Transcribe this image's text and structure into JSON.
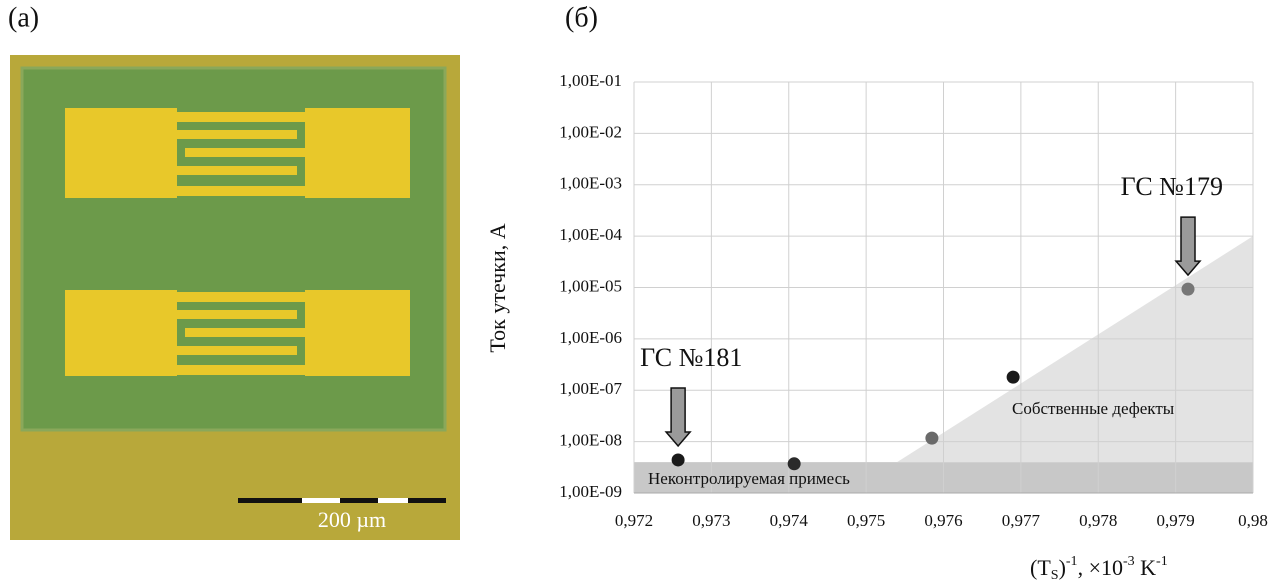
{
  "panel_a": {
    "label": "(a)",
    "scale_bar": "200 µm"
  },
  "panel_b": {
    "label": "(б)"
  },
  "chart_data": {
    "type": "scatter",
    "log_y": true,
    "grid": true,
    "y_label": "Ток утечки, А",
    "x_label": [
      "(T",
      "S",
      ")",
      "-1",
      ", ×10",
      "-3",
      " K",
      "-1"
    ],
    "xlim": [
      0.972,
      0.98
    ],
    "xticks": [
      {
        "value": 0.972,
        "label": "0,972"
      },
      {
        "value": 0.973,
        "label": "0,973"
      },
      {
        "value": 0.974,
        "label": "0,974"
      },
      {
        "value": 0.975,
        "label": "0,975"
      },
      {
        "value": 0.976,
        "label": "0,976"
      },
      {
        "value": 0.977,
        "label": "0,977"
      },
      {
        "value": 0.978,
        "label": "0,978"
      },
      {
        "value": 0.979,
        "label": "0,979"
      },
      {
        "value": 0.98,
        "label": "0,98"
      }
    ],
    "ylim": [
      1e-09,
      0.1
    ],
    "yticks": [
      {
        "value": 1e-09,
        "label": "1,00E-09"
      },
      {
        "value": 1e-08,
        "label": "1,00E-08"
      },
      {
        "value": 1e-07,
        "label": "1,00E-07"
      },
      {
        "value": 1e-06,
        "label": "1,00E-06"
      },
      {
        "value": 1e-05,
        "label": "1,00E-05"
      },
      {
        "value": 0.0001,
        "label": "1,00E-04"
      },
      {
        "value": 0.001,
        "label": "1,00E-03"
      },
      {
        "value": 0.01,
        "label": "1,00E-02"
      },
      {
        "value": 0.1,
        "label": "1,00E-01"
      }
    ],
    "x": [
      0.97257,
      0.97407,
      0.97585,
      0.9769,
      0.97916
    ],
    "values": [
      4.4e-09,
      3.7e-09,
      1.17e-08,
      1.8e-07,
      9.3e-06
    ],
    "colors": [
      "#1a1a1a",
      "#2a2a2a",
      "#6a6a6a",
      "#1a1a1a",
      "#777777"
    ],
    "regions": [
      {
        "name": "Неконтролируемая примесь",
        "color": "#c8c8c8",
        "points": [
          [
            0.972,
            1e-09
          ],
          [
            0.98,
            1e-09
          ],
          [
            0.98,
            4e-09
          ],
          [
            0.972,
            4e-09
          ]
        ]
      },
      {
        "name": "Собственные дефекты",
        "color": "#e3e3e3",
        "points": [
          [
            0.9754,
            4e-09
          ],
          [
            0.98,
            0.0001
          ],
          [
            0.98,
            4e-09
          ]
        ]
      }
    ],
    "annotations": [
      {
        "text": "ГС №181",
        "point": 0
      },
      {
        "text": "ГС №179",
        "point": 4
      }
    ]
  }
}
